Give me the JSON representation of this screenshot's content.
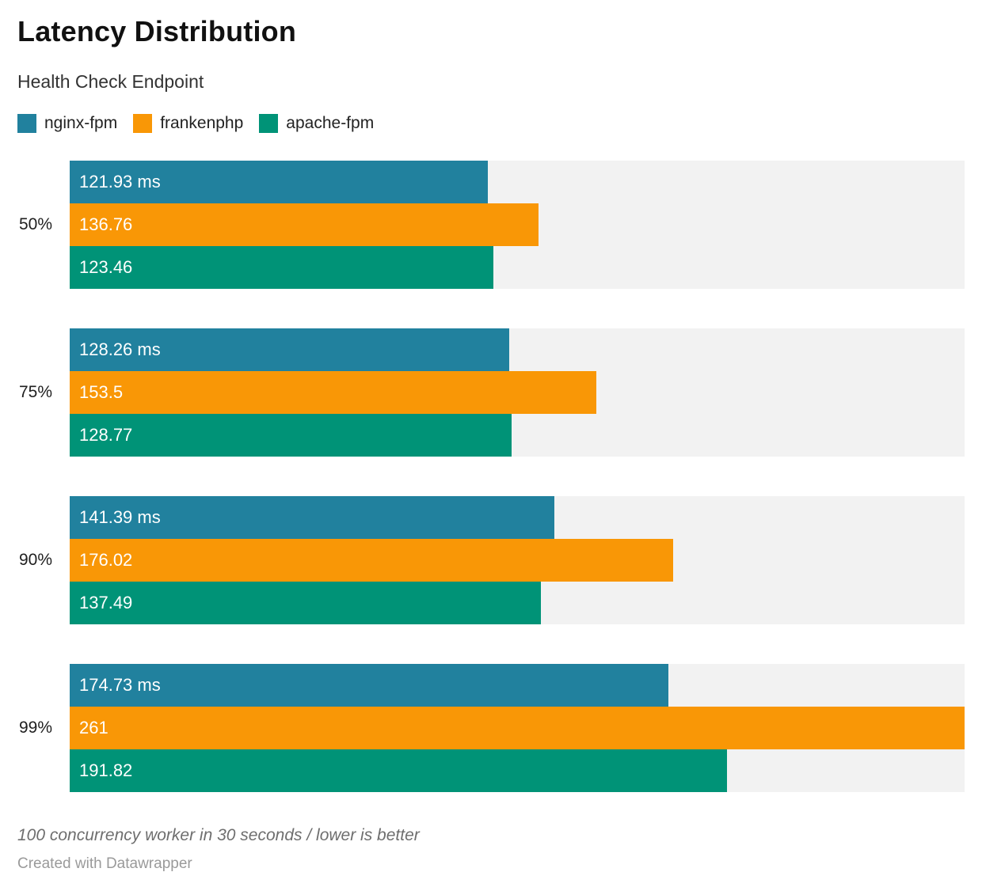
{
  "header": {
    "title": "Latency Distribution",
    "subtitle": "Health Check Endpoint"
  },
  "chart_data": {
    "type": "bar",
    "orientation": "horizontal",
    "title": "Latency Distribution",
    "subtitle": "Health Check Endpoint",
    "categories": [
      "50%",
      "75%",
      "90%",
      "99%"
    ],
    "series": [
      {
        "name": "nginx-fpm",
        "color": "#21819e",
        "values": [
          121.93,
          128.26,
          141.39,
          174.73
        ],
        "labels": [
          "121.93 ms",
          "128.26 ms",
          "141.39 ms",
          "174.73 ms"
        ]
      },
      {
        "name": "frankenphp",
        "color": "#f99706",
        "values": [
          136.76,
          153.5,
          176.02,
          261
        ],
        "labels": [
          "136.76",
          "153.5",
          "176.02",
          "261"
        ]
      },
      {
        "name": "apache-fpm",
        "color": "#009377",
        "values": [
          123.46,
          128.77,
          137.49,
          191.82
        ],
        "labels": [
          "123.46",
          "128.77",
          "137.49",
          "191.82"
        ]
      }
    ],
    "xlim": [
      0,
      261
    ],
    "unit": "ms",
    "grid": false,
    "legend_position": "top",
    "track_color": "#f2f2f2"
  },
  "footer": {
    "note": "100 concurrency worker in 30 seconds / lower is better",
    "attribution": "Created with Datawrapper"
  }
}
